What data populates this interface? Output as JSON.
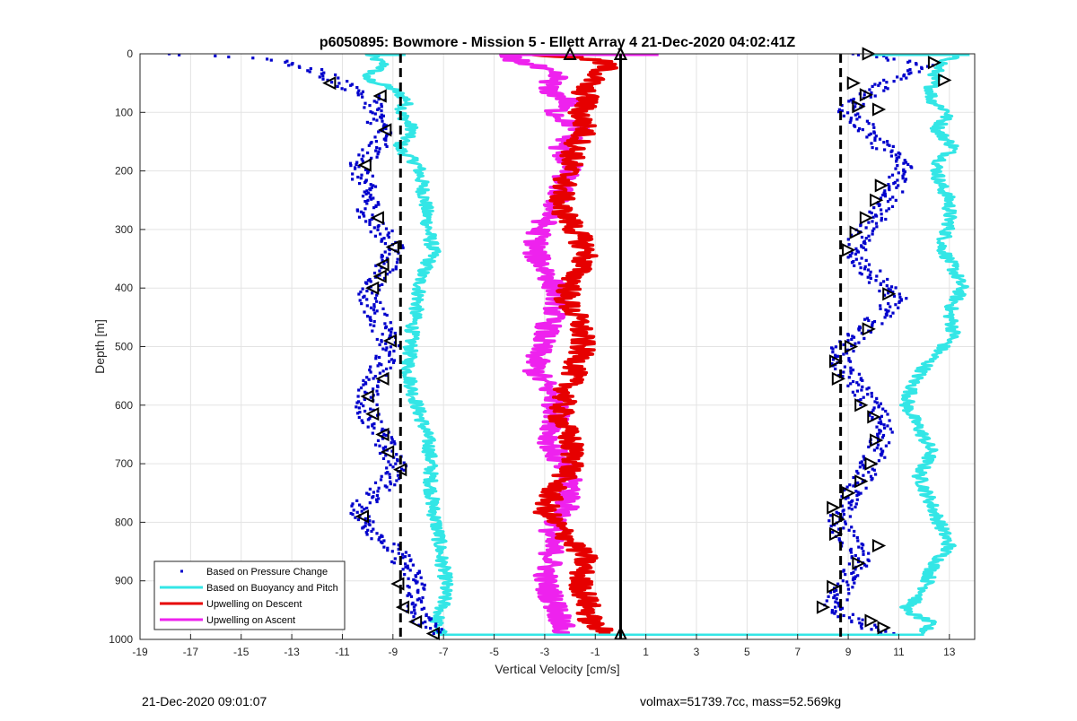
{
  "footer": {
    "timestamp": "21-Dec-2020 09:01:07",
    "vol_mass": "volmax=51739.7cc, mass=52.569kg"
  },
  "chart_data": {
    "type": "scatter",
    "title": "p6050895: Bowmore - Mission 5 - Ellett Array 4 21-Dec-2020 04:02:41Z",
    "xlabel": "Vertical Velocity [cm/s]",
    "ylabel": "Depth [m]",
    "xlim": [
      -19,
      14
    ],
    "ylim": [
      1000,
      0
    ],
    "xticks": [
      -19,
      -17,
      -15,
      -13,
      -11,
      -9,
      -7,
      -5,
      -3,
      -1,
      1,
      3,
      5,
      7,
      9,
      11,
      13
    ],
    "yticks": [
      0,
      100,
      200,
      300,
      400,
      500,
      600,
      700,
      800,
      900,
      1000
    ],
    "grid": true,
    "legend_position": "bottom-left",
    "reference_lines": [
      {
        "x": -8.7,
        "style": "dashed",
        "color": "#000000"
      },
      {
        "x": 8.7,
        "style": "dashed",
        "color": "#000000"
      },
      {
        "x": 0,
        "style": "solid",
        "color": "#000000"
      }
    ],
    "series": [
      {
        "name": "Based on Pressure Change",
        "color": "#0000cc",
        "style": "markers",
        "segments": [
          {
            "depth": [
              0,
              5,
              10,
              30,
              45,
              60,
              80,
              100,
              130,
              160,
              190,
              220,
              250,
              280,
              300,
              330,
              360,
              380,
              410,
              440,
              470,
              500,
              530,
              560,
              590,
              620,
              650,
              680,
              710,
              740,
              770,
              790,
              820,
              850,
              880,
              910,
              940,
              960,
              975,
              990
            ],
            "x": [
              -18.0,
              -15.5,
              -13.5,
              -12.0,
              -11.3,
              -10.6,
              -9.6,
              -9.8,
              -9.4,
              -9.7,
              -10.3,
              -10.2,
              -9.9,
              -10.0,
              -9.5,
              -9.0,
              -9.2,
              -9.5,
              -10.0,
              -9.7,
              -9.4,
              -9.2,
              -9.4,
              -9.8,
              -10.1,
              -9.9,
              -9.5,
              -9.2,
              -8.8,
              -9.4,
              -10.2,
              -10.3,
              -9.6,
              -8.9,
              -8.4,
              -8.0,
              -8.2,
              -8.0,
              -7.6,
              -7.4
            ]
          },
          {
            "depth": [
              0,
              20,
              50,
              80,
              100,
              130,
              160,
              190,
              220,
              250,
              280,
              310,
              340,
              370,
              400,
              420,
              450,
              480,
              500,
              530,
              560,
              590,
              620,
              650,
              680,
              710,
              740,
              770,
              800,
              830,
              860,
              890,
              920,
              950,
              975,
              990
            ],
            "x": [
              9.6,
              12.2,
              10.5,
              9.3,
              9.0,
              9.8,
              10.4,
              11.2,
              11.0,
              10.6,
              10.1,
              9.5,
              9.2,
              9.8,
              10.5,
              10.9,
              10.2,
              9.4,
              8.8,
              8.7,
              9.2,
              9.8,
              10.2,
              10.4,
              10.1,
              9.8,
              9.3,
              8.9,
              8.6,
              9.0,
              9.5,
              9.1,
              8.6,
              8.4,
              9.6,
              10.4
            ]
          }
        ]
      },
      {
        "name": "Based on Buoyancy and Pitch",
        "color": "#33e6e6",
        "style": "line",
        "segments": [
          {
            "depth": [
              0,
              20,
              40,
              60,
              80,
              100,
              130,
              160,
              190,
              210,
              260,
              300,
              340,
              380,
              420,
              460,
              500,
              540,
              580,
              620,
              660,
              700,
              740,
              780,
              820,
              860,
              900,
              940,
              970,
              990
            ],
            "x": [
              -10.0,
              -9.3,
              -10.2,
              -9.0,
              -8.4,
              -8.7,
              -8.2,
              -8.8,
              -8.0,
              -7.9,
              -7.7,
              -7.6,
              -7.4,
              -7.9,
              -8.0,
              -8.2,
              -8.3,
              -8.4,
              -8.2,
              -7.9,
              -7.6,
              -7.5,
              -7.5,
              -7.4,
              -7.2,
              -7.1,
              -6.9,
              -7.0,
              -7.3,
              -7.1
            ]
          },
          {
            "depth": [
              0,
              20,
              50,
              80,
              100,
              130,
              160,
              190,
              220,
              250,
              290,
              330,
              370,
              400,
              440,
              480,
              520,
              560,
              600,
              640,
              680,
              720,
              760,
              800,
              840,
              880,
              920,
              950,
              970,
              990
            ],
            "x": [
              13.3,
              12.6,
              12.3,
              12.3,
              13.0,
              12.5,
              13.2,
              12.5,
              12.6,
              13.0,
              13.0,
              12.7,
              13.2,
              13.5,
              13.0,
              13.2,
              12.3,
              11.6,
              11.3,
              11.8,
              12.3,
              11.8,
              12.2,
              12.6,
              13.0,
              12.3,
              12.0,
              11.2,
              12.2,
              12.0
            ]
          }
        ]
      },
      {
        "name": "Upwelling on Descent",
        "color": "#e60000",
        "style": "line",
        "depth": [
          0,
          10,
          20,
          40,
          60,
          80,
          100,
          130,
          160,
          190,
          220,
          260,
          300,
          340,
          380,
          420,
          460,
          500,
          540,
          580,
          620,
          660,
          700,
          740,
          780,
          820,
          860,
          900,
          940,
          970,
          990
        ],
        "x": [
          -3.5,
          -1.0,
          -0.5,
          -1.0,
          -1.5,
          -1.3,
          -1.6,
          -1.4,
          -1.8,
          -2.0,
          -2.2,
          -2.4,
          -1.8,
          -1.3,
          -1.8,
          -2.2,
          -1.6,
          -1.5,
          -1.8,
          -2.2,
          -2.4,
          -2.0,
          -1.8,
          -2.6,
          -3.0,
          -2.2,
          -1.4,
          -1.6,
          -1.3,
          -1.2,
          -0.6
        ]
      },
      {
        "name": "Upwelling on Ascent",
        "color": "#ee22ee",
        "style": "line",
        "depth": [
          0,
          20,
          40,
          60,
          80,
          100,
          130,
          160,
          190,
          220,
          260,
          300,
          340,
          380,
          420,
          460,
          500,
          540,
          580,
          620,
          660,
          700,
          740,
          780,
          820,
          860,
          900,
          940,
          970,
          990
        ],
        "x": [
          -4.8,
          -3.5,
          -2.5,
          -3.0,
          -2.0,
          -2.6,
          -1.6,
          -2.4,
          -2.0,
          -2.3,
          -2.6,
          -3.2,
          -3.4,
          -2.8,
          -2.4,
          -2.8,
          -3.2,
          -3.4,
          -2.7,
          -2.5,
          -2.8,
          -2.4,
          -1.9,
          -2.2,
          -2.8,
          -2.7,
          -3.0,
          -2.6,
          -2.3,
          -2.4
        ]
      }
    ],
    "markers": {
      "left_turns": [
        [
          -11.5,
          50
        ],
        [
          -9.5,
          72
        ],
        [
          -9.3,
          130
        ],
        [
          -10.1,
          190
        ],
        [
          -9.6,
          280
        ],
        [
          -9.0,
          330
        ],
        [
          -9.4,
          360
        ],
        [
          -9.5,
          380
        ],
        [
          -9.8,
          400
        ],
        [
          -9.1,
          490
        ],
        [
          -9.4,
          555
        ],
        [
          -10.0,
          585
        ],
        [
          -9.8,
          615
        ],
        [
          -9.4,
          650
        ],
        [
          -9.2,
          680
        ],
        [
          -8.7,
          710
        ],
        [
          -10.2,
          790
        ],
        [
          -8.8,
          905
        ],
        [
          -8.6,
          945
        ],
        [
          -8.1,
          970
        ],
        [
          -7.4,
          990
        ]
      ],
      "right_turns": [
        [
          9.8,
          0
        ],
        [
          12.4,
          15
        ],
        [
          12.8,
          45
        ],
        [
          9.2,
          50
        ],
        [
          9.7,
          70
        ],
        [
          9.4,
          90
        ],
        [
          10.2,
          95
        ],
        [
          10.3,
          225
        ],
        [
          10.1,
          250
        ],
        [
          9.7,
          280
        ],
        [
          9.3,
          305
        ],
        [
          9.0,
          335
        ],
        [
          10.6,
          410
        ],
        [
          9.8,
          470
        ],
        [
          9.1,
          500
        ],
        [
          8.5,
          525
        ],
        [
          8.6,
          555
        ],
        [
          9.5,
          600
        ],
        [
          10.0,
          620
        ],
        [
          10.1,
          660
        ],
        [
          9.9,
          700
        ],
        [
          9.5,
          730
        ],
        [
          9.0,
          750
        ],
        [
          8.4,
          775
        ],
        [
          8.6,
          795
        ],
        [
          8.5,
          820
        ],
        [
          10.2,
          840
        ],
        [
          9.4,
          870
        ],
        [
          8.4,
          910
        ],
        [
          8.0,
          945
        ],
        [
          9.9,
          968
        ],
        [
          10.4,
          980
        ]
      ],
      "center_turns": [
        [
          0.0,
          0
        ],
        [
          -2.0,
          0
        ],
        [
          0.0,
          990
        ]
      ]
    }
  }
}
